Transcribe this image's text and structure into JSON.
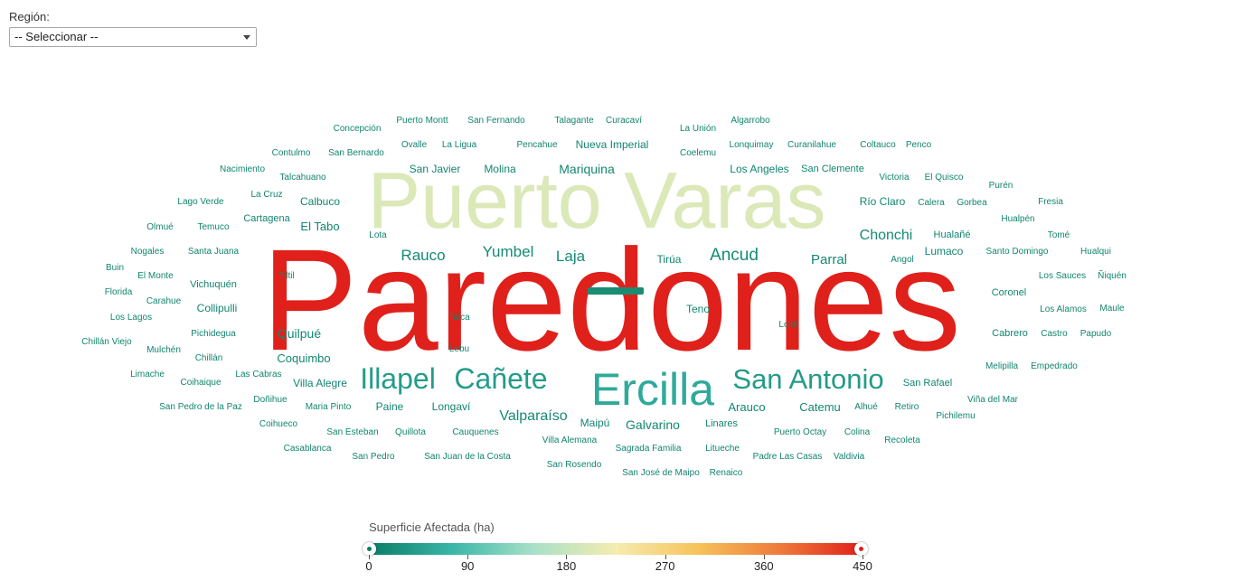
{
  "filter": {
    "label": "Región:",
    "selected": "-- Seleccionar --"
  },
  "chart_data": {
    "type": "wordcloud",
    "legend": {
      "title": "Superficie Afectada (ha)",
      "min": 0,
      "max": 450,
      "ticks": [
        "0",
        "90",
        "180",
        "270",
        "360",
        "450"
      ],
      "colors": [
        "#0a7c64",
        "#38b6a8",
        "#a8e0c8",
        "#f5ecb0",
        "#f6c35a",
        "#ee7a3a",
        "#e0201b"
      ]
    },
    "words": [
      {
        "text": "Paredones",
        "value": 450
      },
      {
        "text": "Puerto Varas",
        "value": 200
      },
      {
        "text": "Ercilla",
        "value": 60
      },
      {
        "text": "Illapel",
        "value": 42
      },
      {
        "text": "Cañete",
        "value": 42
      },
      {
        "text": "San Antonio",
        "value": 40
      },
      {
        "text": "Valparaíso",
        "value": 18
      },
      {
        "text": "Chonchi",
        "value": 18
      },
      {
        "text": "Rauco",
        "value": 18
      },
      {
        "text": "Yumbel",
        "value": 18
      },
      {
        "text": "Laja",
        "value": 18
      },
      {
        "text": "Ancud",
        "value": 20
      },
      {
        "text": "Parral",
        "value": 16
      },
      {
        "text": "Quilpué",
        "value": 15
      },
      {
        "text": "Coquimbo",
        "value": 14
      },
      {
        "text": "Galvarino",
        "value": 15
      },
      {
        "text": "Villa Alegre",
        "value": 13
      },
      {
        "text": "Arauco",
        "value": 14
      },
      {
        "text": "Catemu",
        "value": 14
      },
      {
        "text": "Mariquina",
        "value": 15
      },
      {
        "text": "Molina",
        "value": 13
      },
      {
        "text": "San Javier",
        "value": 13
      },
      {
        "text": "Nueva Imperial",
        "value": 13
      },
      {
        "text": "Los Angeles",
        "value": 13
      },
      {
        "text": "San Clemente",
        "value": 12
      },
      {
        "text": "Collipulli",
        "value": 13
      },
      {
        "text": "Calbuco",
        "value": 13
      },
      {
        "text": "El Tabo",
        "value": 14
      },
      {
        "text": "Río Claro",
        "value": 13
      },
      {
        "text": "Lumaco",
        "value": 13
      },
      {
        "text": "Hualañé",
        "value": 12
      },
      {
        "text": "Vichuquén",
        "value": 12
      },
      {
        "text": "Cartagena",
        "value": 12
      },
      {
        "text": "Tirúa",
        "value": 13
      },
      {
        "text": "Teno",
        "value": 13
      },
      {
        "text": "Paine",
        "value": 13
      },
      {
        "text": "Longaví",
        "value": 13
      },
      {
        "text": "Maipú",
        "value": 13
      },
      {
        "text": "Linares",
        "value": 12
      },
      {
        "text": "Coronel",
        "value": 12
      },
      {
        "text": "Cabrero",
        "value": 12
      },
      {
        "text": "San Rafael",
        "value": 12
      },
      {
        "text": "Concepción",
        "value": 11
      },
      {
        "text": "Puerto Montt",
        "value": 11
      },
      {
        "text": "San Fernando",
        "value": 11
      },
      {
        "text": "Talagante",
        "value": 11
      },
      {
        "text": "Curacaví",
        "value": 11
      },
      {
        "text": "La Unión",
        "value": 11
      },
      {
        "text": "Algarrobo",
        "value": 11
      },
      {
        "text": "Contulmo",
        "value": 11
      },
      {
        "text": "San Bernardo",
        "value": 11
      },
      {
        "text": "Ovalle",
        "value": 11
      },
      {
        "text": "La Ligua",
        "value": 11
      },
      {
        "text": "Pencahue",
        "value": 11
      },
      {
        "text": "Coelemu",
        "value": 11
      },
      {
        "text": "Lonquimay",
        "value": 11
      },
      {
        "text": "Curanilahue",
        "value": 11
      },
      {
        "text": "Coltauco",
        "value": 11
      },
      {
        "text": "Penco",
        "value": 11
      },
      {
        "text": "Nacimiento",
        "value": 11
      },
      {
        "text": "Talcahuano",
        "value": 11
      },
      {
        "text": "Victoria",
        "value": 11
      },
      {
        "text": "El Quisco",
        "value": 11
      },
      {
        "text": "Purén",
        "value": 11
      },
      {
        "text": "Lago Verde",
        "value": 11
      },
      {
        "text": "La Cruz",
        "value": 11
      },
      {
        "text": "Calera",
        "value": 11
      },
      {
        "text": "Gorbea",
        "value": 11
      },
      {
        "text": "Fresia",
        "value": 11
      },
      {
        "text": "Olmué",
        "value": 11
      },
      {
        "text": "Temuco",
        "value": 11
      },
      {
        "text": "Hualpén",
        "value": 11
      },
      {
        "text": "Lota",
        "value": 11
      },
      {
        "text": "Tomé",
        "value": 11
      },
      {
        "text": "Nogales",
        "value": 11
      },
      {
        "text": "Santa Juana",
        "value": 11
      },
      {
        "text": "Santo Domingo",
        "value": 11
      },
      {
        "text": "Hualqui",
        "value": 11
      },
      {
        "text": "Angol",
        "value": 11
      },
      {
        "text": "Buin",
        "value": 11
      },
      {
        "text": "El Monte",
        "value": 11
      },
      {
        "text": "Tiltil",
        "value": 11
      },
      {
        "text": "Los Sauces",
        "value": 11
      },
      {
        "text": "Ñiquén",
        "value": 11
      },
      {
        "text": "Florida",
        "value": 11
      },
      {
        "text": "Carahue",
        "value": 11
      },
      {
        "text": "Los Lagos",
        "value": 11
      },
      {
        "text": "Talca",
        "value": 11
      },
      {
        "text": "Lolol",
        "value": 11
      },
      {
        "text": "Los Alamos",
        "value": 11
      },
      {
        "text": "Maule",
        "value": 11
      },
      {
        "text": "Pichidegua",
        "value": 11
      },
      {
        "text": "Castro",
        "value": 11
      },
      {
        "text": "Papudo",
        "value": 11
      },
      {
        "text": "Chillán Viejo",
        "value": 11
      },
      {
        "text": "Mulchén",
        "value": 11
      },
      {
        "text": "Lebu",
        "value": 11
      },
      {
        "text": "Chillán",
        "value": 11
      },
      {
        "text": "Melipilla",
        "value": 11
      },
      {
        "text": "Empedrado",
        "value": 11
      },
      {
        "text": "Limache",
        "value": 11
      },
      {
        "text": "Coihaique",
        "value": 11
      },
      {
        "text": "Las Cabras",
        "value": 11
      },
      {
        "text": "Doñihue",
        "value": 11
      },
      {
        "text": "Viña del Mar",
        "value": 11
      },
      {
        "text": "San Pedro de la Paz",
        "value": 11
      },
      {
        "text": "Maria Pinto",
        "value": 11
      },
      {
        "text": "Alhué",
        "value": 11
      },
      {
        "text": "Retiro",
        "value": 11
      },
      {
        "text": "Pichilemu",
        "value": 11
      },
      {
        "text": "Coihueco",
        "value": 11
      },
      {
        "text": "San Esteban",
        "value": 11
      },
      {
        "text": "Quillota",
        "value": 11
      },
      {
        "text": "Cauquenes",
        "value": 11
      },
      {
        "text": "Puerto Octay",
        "value": 11
      },
      {
        "text": "Colina",
        "value": 11
      },
      {
        "text": "Recoleta",
        "value": 11
      },
      {
        "text": "Casablanca",
        "value": 11
      },
      {
        "text": "Villa Alemana",
        "value": 11
      },
      {
        "text": "Sagrada Familia",
        "value": 11
      },
      {
        "text": "Litueche",
        "value": 11
      },
      {
        "text": "San Pedro",
        "value": 11
      },
      {
        "text": "San Juan de la Costa",
        "value": 11
      },
      {
        "text": "Padre Las Casas",
        "value": 11
      },
      {
        "text": "Valdivia",
        "value": 11
      },
      {
        "text": "San Rosendo",
        "value": 11
      },
      {
        "text": "San José de Maipo",
        "value": 11
      },
      {
        "text": "Renaico",
        "value": 11
      }
    ]
  }
}
